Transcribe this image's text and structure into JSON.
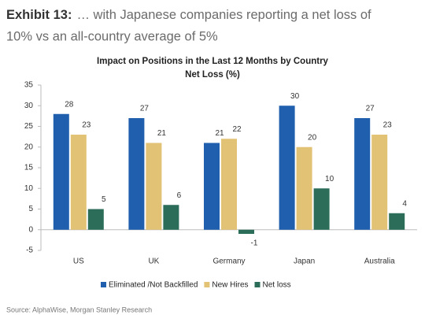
{
  "header": {
    "exhibit": "Exhibit 13:",
    "lines": [
      "… with Japanese companies reporting a net loss of",
      "10% vs an all-country average of 5%"
    ]
  },
  "chart_data": {
    "type": "bar",
    "title": [
      "Impact on Positions in the Last 12 Months by Country",
      "Net Loss (%)"
    ],
    "categories": [
      "US",
      "UK",
      "Germany",
      "Japan",
      "Australia"
    ],
    "series": [
      {
        "name": "Eliminated /Not Backfilled",
        "color": "#1f5fae",
        "values": [
          28,
          27,
          21,
          30,
          27
        ]
      },
      {
        "name": "New Hires",
        "color": "#e2c274",
        "values": [
          23,
          21,
          22,
          20,
          23
        ]
      },
      {
        "name": "Net loss",
        "color": "#2b6d58",
        "values": [
          5,
          6,
          -1,
          10,
          4
        ]
      }
    ],
    "ylim": [
      -5,
      35
    ],
    "yticks": [
      -5,
      0,
      5,
      10,
      15,
      20,
      25,
      30,
      35
    ],
    "grid": false,
    "legend": "bottom"
  },
  "source": "Source: AlphaWise, Morgan Stanley Research"
}
